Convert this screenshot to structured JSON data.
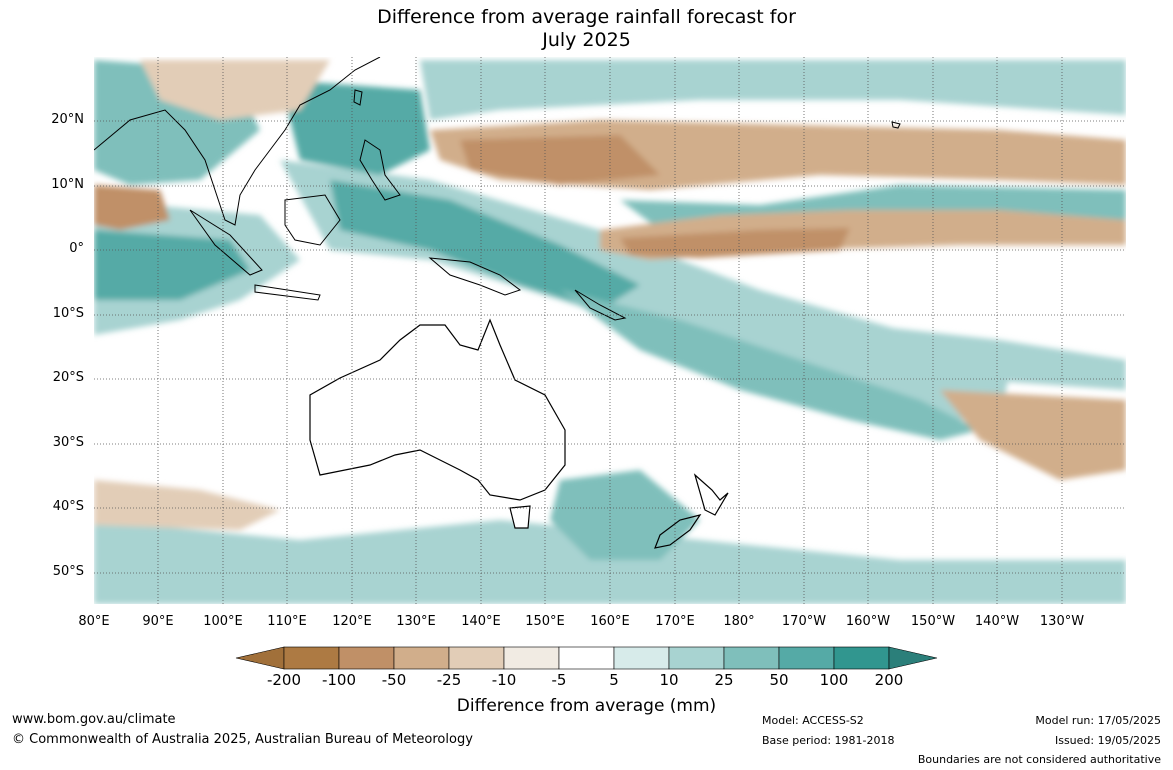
{
  "title_line1": "Difference from average rainfall forecast for",
  "title_line2": "July 2025",
  "lat_labels": [
    "20°N",
    "10°N",
    "0°",
    "10°S",
    "20°S",
    "30°S",
    "40°S",
    "50°S"
  ],
  "lon_labels": [
    "80°E",
    "90°E",
    "100°E",
    "110°E",
    "120°E",
    "130°E",
    "140°E",
    "150°E",
    "160°E",
    "170°E",
    "180°",
    "170°W",
    "160°W",
    "150°W",
    "140°W",
    "130°W"
  ],
  "colorbar": {
    "labels": [
      "-200",
      "-100",
      "-50",
      "-25",
      "-10",
      "-5",
      "5",
      "10",
      "25",
      "50",
      "100",
      "200"
    ],
    "colors": [
      "#a1703a",
      "#ad7a43",
      "#c09067",
      "#d1ae8b",
      "#e2cdb7",
      "#f1ebe3",
      "#ffffff",
      "#d7ebea",
      "#a8d3d1",
      "#7fbfbb",
      "#55aaa6",
      "#31968f",
      "#2b7f7a"
    ],
    "title": "Difference from average (mm)"
  },
  "footer": {
    "website": "www.bom.gov.au/climate",
    "copyright": "© Commonwealth of Australia 2025, Australian Bureau of Meteorology",
    "model": "Model: ACCESS-S2",
    "base_period": "Base period: 1981-2018",
    "model_run": "Model run: 17/05/2025",
    "issued": "Issued: 19/05/2025",
    "disclaimer": "Boundaries are not considered authoritative"
  },
  "map_regions": [
    "Australia",
    "New Zealand",
    "Maritime Continent",
    "Pacific Ocean",
    "Indian Ocean"
  ]
}
